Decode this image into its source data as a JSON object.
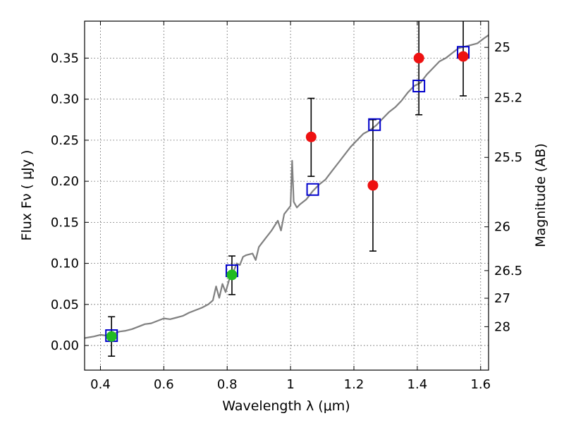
{
  "chart_data": {
    "type": "scatter",
    "xlabel": "Wavelength  λ (μm)",
    "ylabel": "Flux  Fν  ( μJy )",
    "ylabel_right": "Magnitude (AB)",
    "xlim": [
      0.35,
      1.625
    ],
    "ylim": [
      -0.03,
      0.395
    ],
    "grid": true,
    "x_ticks": [
      {
        "value": 0.4,
        "label": "0.4"
      },
      {
        "value": 0.6,
        "label": "0.6"
      },
      {
        "value": 0.8,
        "label": "0.8"
      },
      {
        "value": 1.0,
        "label": "1"
      },
      {
        "value": 1.2,
        "label": "1.2"
      },
      {
        "value": 1.4,
        "label": "1.4"
      },
      {
        "value": 1.6,
        "label": "1.6"
      }
    ],
    "y_ticks": [
      {
        "value": 0.0,
        "label": "0.00"
      },
      {
        "value": 0.05,
        "label": "0.05"
      },
      {
        "value": 0.1,
        "label": "0.10"
      },
      {
        "value": 0.15,
        "label": "0.15"
      },
      {
        "value": 0.2,
        "label": "0.20"
      },
      {
        "value": 0.25,
        "label": "0.25"
      },
      {
        "value": 0.3,
        "label": "0.30"
      },
      {
        "value": 0.35,
        "label": "0.35"
      }
    ],
    "right_ticks": [
      {
        "label": "25",
        "mag": 25.0
      },
      {
        "label": "25.2",
        "mag": 25.2
      },
      {
        "label": "25.5",
        "mag": 25.5
      },
      {
        "label": "26",
        "mag": 26.0
      },
      {
        "label": "26.5",
        "mag": 26.5
      },
      {
        "label": "27",
        "mag": 27.0
      },
      {
        "label": "28",
        "mag": 28.0
      }
    ],
    "series": [
      {
        "kind": "line",
        "color": "#808080",
        "points": [
          [
            0.35,
            0.009
          ],
          [
            0.38,
            0.011
          ],
          [
            0.4,
            0.013
          ],
          [
            0.42,
            0.012
          ],
          [
            0.44,
            0.014
          ],
          [
            0.46,
            0.017
          ],
          [
            0.48,
            0.018
          ],
          [
            0.5,
            0.02
          ],
          [
            0.52,
            0.023
          ],
          [
            0.54,
            0.026
          ],
          [
            0.56,
            0.027
          ],
          [
            0.58,
            0.03
          ],
          [
            0.6,
            0.033
          ],
          [
            0.62,
            0.032
          ],
          [
            0.64,
            0.034
          ],
          [
            0.66,
            0.036
          ],
          [
            0.68,
            0.04
          ],
          [
            0.7,
            0.043
          ],
          [
            0.72,
            0.046
          ],
          [
            0.74,
            0.05
          ],
          [
            0.755,
            0.055
          ],
          [
            0.765,
            0.072
          ],
          [
            0.775,
            0.058
          ],
          [
            0.785,
            0.075
          ],
          [
            0.795,
            0.065
          ],
          [
            0.81,
            0.085
          ],
          [
            0.82,
            0.09
          ],
          [
            0.83,
            0.1
          ],
          [
            0.84,
            0.098
          ],
          [
            0.85,
            0.108
          ],
          [
            0.86,
            0.11
          ],
          [
            0.88,
            0.112
          ],
          [
            0.89,
            0.104
          ],
          [
            0.9,
            0.12
          ],
          [
            0.92,
            0.13
          ],
          [
            0.94,
            0.14
          ],
          [
            0.96,
            0.152
          ],
          [
            0.97,
            0.14
          ],
          [
            0.98,
            0.16
          ],
          [
            0.99,
            0.165
          ],
          [
            1.0,
            0.17
          ],
          [
            1.005,
            0.225
          ],
          [
            1.01,
            0.175
          ],
          [
            1.02,
            0.168
          ],
          [
            1.03,
            0.172
          ],
          [
            1.05,
            0.178
          ],
          [
            1.07,
            0.188
          ],
          [
            1.09,
            0.196
          ],
          [
            1.11,
            0.202
          ],
          [
            1.13,
            0.212
          ],
          [
            1.15,
            0.222
          ],
          [
            1.17,
            0.232
          ],
          [
            1.19,
            0.242
          ],
          [
            1.21,
            0.25
          ],
          [
            1.23,
            0.258
          ],
          [
            1.25,
            0.262
          ],
          [
            1.27,
            0.268
          ],
          [
            1.29,
            0.276
          ],
          [
            1.31,
            0.284
          ],
          [
            1.33,
            0.29
          ],
          [
            1.35,
            0.298
          ],
          [
            1.37,
            0.308
          ],
          [
            1.39,
            0.316
          ],
          [
            1.41,
            0.32
          ],
          [
            1.43,
            0.33
          ],
          [
            1.45,
            0.338
          ],
          [
            1.47,
            0.346
          ],
          [
            1.49,
            0.35
          ],
          [
            1.51,
            0.356
          ],
          [
            1.53,
            0.362
          ],
          [
            1.55,
            0.364
          ],
          [
            1.57,
            0.366
          ],
          [
            1.59,
            0.368
          ],
          [
            1.61,
            0.374
          ],
          [
            1.625,
            0.378
          ]
        ]
      },
      {
        "kind": "square",
        "color": "#0000cc",
        "points": [
          [
            0.435,
            0.012
          ],
          [
            0.815,
            0.091
          ],
          [
            1.07,
            0.19
          ],
          [
            1.265,
            0.269
          ],
          [
            1.405,
            0.316
          ],
          [
            1.545,
            0.357
          ]
        ]
      },
      {
        "kind": "circle",
        "color": "#22bb22",
        "points": [
          [
            0.435,
            0.011
          ],
          [
            0.815,
            0.086
          ]
        ]
      },
      {
        "kind": "circle",
        "color": "#ee1111",
        "points": [
          [
            1.065,
            0.254
          ],
          [
            1.26,
            0.195
          ],
          [
            1.405,
            0.35
          ],
          [
            1.545,
            0.352
          ]
        ]
      }
    ],
    "error_bars": [
      {
        "x": 0.435,
        "low": -0.013,
        "high": 0.035
      },
      {
        "x": 0.815,
        "low": 0.062,
        "high": 0.109
      },
      {
        "x": 1.065,
        "low": 0.206,
        "high": 0.301
      },
      {
        "x": 1.26,
        "low": 0.115,
        "high": 0.275
      },
      {
        "x": 1.405,
        "low": 0.281,
        "high": 0.395
      },
      {
        "x": 1.545,
        "low": 0.304,
        "high": 0.395
      }
    ]
  }
}
